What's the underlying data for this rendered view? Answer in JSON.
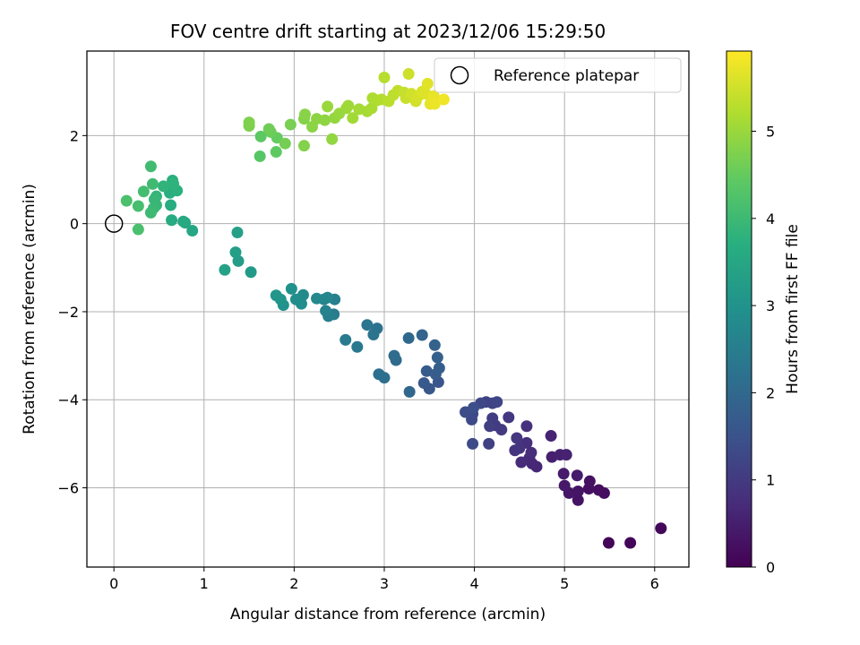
{
  "chart_data": {
    "type": "scatter",
    "title": "FOV centre drift starting at 2023/12/06 15:29:50",
    "xlabel": "Angular distance from reference (arcmin)",
    "ylabel": "Rotation from reference (arcmin)",
    "xlim": [
      -0.3,
      6.38
    ],
    "ylim": [
      -7.8,
      3.92
    ],
    "xticks": [
      0,
      1,
      2,
      3,
      4,
      5,
      6
    ],
    "yticks": [
      -6,
      -4,
      -2,
      0,
      2
    ],
    "grid": true,
    "legend": {
      "location": "top-right",
      "entries": [
        "Reference platepar"
      ]
    },
    "reference_point": {
      "name": "Reference platepar",
      "x": 0,
      "y": 0
    },
    "colorbar": {
      "label": "Hours from first FF file",
      "range": [
        0,
        5.92
      ],
      "ticks": [
        0,
        1,
        2,
        3,
        4,
        5
      ],
      "colormap": "viridis"
    },
    "series": [
      {
        "color_by": "Hours from first FF file",
        "points": [
          [
            5.49,
            -7.25,
            0.05
          ],
          [
            5.73,
            -7.25,
            0.08
          ],
          [
            6.07,
            -6.92,
            0.12
          ],
          [
            5.44,
            -6.12,
            0.2
          ],
          [
            5.38,
            -6.05,
            0.22
          ],
          [
            5.27,
            -6.02,
            0.25
          ],
          [
            5.28,
            -5.85,
            0.27
          ],
          [
            5.15,
            -6.28,
            0.3
          ],
          [
            5.15,
            -6.08,
            0.33
          ],
          [
            5.05,
            -6.12,
            0.36
          ],
          [
            5.0,
            -5.95,
            0.4
          ],
          [
            4.99,
            -5.68,
            0.43
          ],
          [
            5.14,
            -5.72,
            0.45
          ],
          [
            4.86,
            -5.3,
            0.5
          ],
          [
            4.95,
            -5.25,
            0.53
          ],
          [
            5.02,
            -5.25,
            0.55
          ],
          [
            4.85,
            -4.82,
            0.58
          ],
          [
            4.69,
            -5.52,
            0.62
          ],
          [
            4.64,
            -5.45,
            0.65
          ],
          [
            4.61,
            -5.32,
            0.68
          ],
          [
            4.52,
            -5.42,
            0.72
          ],
          [
            4.63,
            -5.2,
            0.75
          ],
          [
            4.58,
            -4.98,
            0.78
          ],
          [
            4.58,
            -4.6,
            0.82
          ],
          [
            4.5,
            -5.1,
            0.85
          ],
          [
            4.45,
            -5.15,
            0.88
          ],
          [
            4.47,
            -4.87,
            0.92
          ],
          [
            4.38,
            -4.4,
            0.95
          ],
          [
            4.3,
            -4.68,
            1.0
          ],
          [
            4.23,
            -4.58,
            1.02
          ],
          [
            4.2,
            -4.42,
            1.05
          ],
          [
            4.17,
            -4.6,
            1.08
          ],
          [
            4.16,
            -5.0,
            1.12
          ],
          [
            4.13,
            -4.05,
            1.15
          ],
          [
            4.2,
            -4.08,
            1.18
          ],
          [
            4.25,
            -4.05,
            1.22
          ],
          [
            4.07,
            -4.08,
            1.25
          ],
          [
            3.98,
            -4.32,
            1.28
          ],
          [
            3.97,
            -4.45,
            1.32
          ],
          [
            3.98,
            -5.0,
            1.35
          ],
          [
            3.9,
            -4.28,
            1.38
          ],
          [
            3.99,
            -4.18,
            1.42
          ],
          [
            3.6,
            -3.6,
            1.55
          ],
          [
            3.5,
            -3.75,
            1.6
          ],
          [
            3.44,
            -3.62,
            1.65
          ],
          [
            3.47,
            -3.35,
            1.7
          ],
          [
            3.57,
            -3.42,
            1.73
          ],
          [
            3.61,
            -3.28,
            1.76
          ],
          [
            3.59,
            -3.04,
            1.8
          ],
          [
            3.56,
            -2.76,
            1.85
          ],
          [
            3.42,
            -2.53,
            1.9
          ],
          [
            3.28,
            -3.82,
            1.95
          ],
          [
            3.27,
            -2.6,
            2.0
          ],
          [
            3.13,
            -3.1,
            2.05
          ],
          [
            3.11,
            -3.0,
            2.08
          ],
          [
            3.0,
            -3.5,
            2.12
          ],
          [
            2.94,
            -3.42,
            2.15
          ],
          [
            2.92,
            -2.38,
            2.2
          ],
          [
            2.88,
            -2.52,
            2.25
          ],
          [
            2.81,
            -2.3,
            2.3
          ],
          [
            2.7,
            -2.8,
            2.35
          ],
          [
            2.57,
            -2.64,
            2.4
          ],
          [
            2.44,
            -2.06,
            2.45
          ],
          [
            2.38,
            -2.1,
            2.5
          ],
          [
            2.45,
            -1.72,
            2.55
          ],
          [
            2.35,
            -1.98,
            2.6
          ],
          [
            2.33,
            -1.72,
            2.65
          ],
          [
            2.37,
            -1.68,
            2.7
          ],
          [
            2.25,
            -1.7,
            2.75
          ],
          [
            2.1,
            -1.62,
            2.8
          ],
          [
            2.08,
            -1.82,
            2.85
          ],
          [
            2.02,
            -1.72,
            2.9
          ],
          [
            1.97,
            -1.48,
            2.95
          ],
          [
            1.88,
            -1.85,
            3.0
          ],
          [
            1.85,
            -1.72,
            3.05
          ],
          [
            1.8,
            -1.63,
            3.1
          ],
          [
            1.52,
            -1.1,
            3.2
          ],
          [
            1.38,
            -0.85,
            3.25
          ],
          [
            1.35,
            -0.65,
            3.3
          ],
          [
            1.37,
            -0.2,
            3.35
          ],
          [
            1.23,
            -1.05,
            3.4
          ],
          [
            0.87,
            -0.16,
            3.5
          ],
          [
            0.79,
            0.02,
            3.55
          ],
          [
            0.77,
            0.05,
            3.58
          ],
          [
            0.64,
            0.08,
            3.62
          ],
          [
            0.63,
            0.42,
            3.66
          ],
          [
            0.62,
            0.7,
            3.7
          ],
          [
            0.65,
            0.98,
            3.73
          ],
          [
            0.7,
            0.75,
            3.76
          ],
          [
            0.66,
            0.9,
            3.8
          ],
          [
            0.55,
            0.85,
            3.83
          ],
          [
            0.47,
            0.62,
            3.86
          ],
          [
            0.47,
            0.42,
            3.9
          ],
          [
            0.45,
            0.55,
            3.93
          ],
          [
            0.44,
            0.35,
            3.96
          ],
          [
            0.41,
            0.25,
            4.0
          ],
          [
            0.43,
            0.9,
            4.03
          ],
          [
            0.41,
            1.3,
            4.06
          ],
          [
            0.33,
            0.73,
            4.1
          ],
          [
            0.27,
            0.4,
            4.13
          ],
          [
            0.27,
            -0.13,
            4.16
          ],
          [
            0.14,
            0.52,
            4.2
          ],
          [
            1.62,
            1.53,
            4.35
          ],
          [
            1.63,
            1.98,
            4.4
          ],
          [
            1.8,
            1.63,
            4.45
          ],
          [
            1.81,
            1.95,
            4.5
          ],
          [
            1.74,
            2.08,
            4.55
          ],
          [
            1.72,
            2.15,
            4.6
          ],
          [
            1.9,
            1.82,
            4.65
          ],
          [
            1.96,
            2.25,
            4.68
          ],
          [
            1.5,
            2.22,
            4.72
          ],
          [
            1.5,
            2.3,
            4.75
          ],
          [
            2.11,
            1.77,
            4.78
          ],
          [
            2.11,
            2.38,
            4.8
          ],
          [
            2.12,
            2.48,
            4.83
          ],
          [
            2.2,
            2.2,
            4.86
          ],
          [
            2.25,
            2.38,
            4.88
          ],
          [
            2.34,
            2.35,
            4.9
          ],
          [
            2.42,
            1.92,
            4.93
          ],
          [
            2.45,
            2.4,
            4.95
          ],
          [
            2.5,
            2.5,
            4.98
          ],
          [
            2.37,
            2.66,
            5.0
          ],
          [
            2.58,
            2.62,
            5.02
          ],
          [
            2.6,
            2.68,
            5.05
          ],
          [
            2.65,
            2.4,
            5.08
          ],
          [
            2.72,
            2.6,
            5.1
          ],
          [
            2.81,
            2.55,
            5.12
          ],
          [
            2.86,
            2.62,
            5.15
          ],
          [
            2.87,
            2.85,
            5.18
          ],
          [
            2.92,
            2.8,
            5.2
          ],
          [
            2.97,
            2.82,
            5.23
          ],
          [
            3.0,
            3.32,
            5.26
          ],
          [
            3.05,
            2.78,
            5.3
          ],
          [
            3.1,
            2.92,
            5.33
          ],
          [
            3.15,
            3.02,
            5.36
          ],
          [
            3.22,
            2.98,
            5.4
          ],
          [
            3.24,
            2.85,
            5.43
          ],
          [
            3.27,
            3.4,
            5.47
          ],
          [
            3.3,
            2.95,
            5.5
          ],
          [
            3.35,
            2.78,
            5.53
          ],
          [
            3.38,
            2.9,
            5.56
          ],
          [
            3.42,
            3.0,
            5.6
          ],
          [
            3.46,
            2.95,
            5.63
          ],
          [
            3.48,
            3.18,
            5.66
          ],
          [
            3.51,
            2.72,
            5.7
          ],
          [
            3.55,
            2.9,
            5.73
          ],
          [
            3.56,
            2.72,
            5.76
          ],
          [
            3.66,
            2.82,
            5.8
          ]
        ]
      }
    ]
  }
}
